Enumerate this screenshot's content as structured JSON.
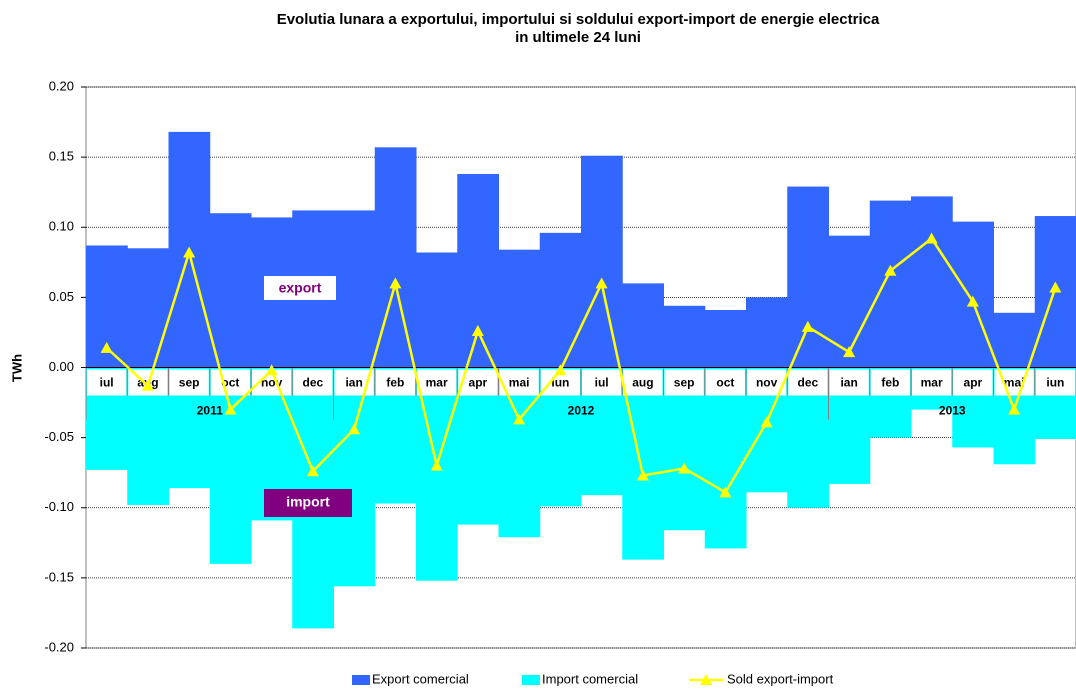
{
  "chart_data": {
    "type": "bar-line",
    "title": "Evolutia lunara a exportului, importului si soldului export-import de energie electrica",
    "subtitle": "in ultimele 24 luni",
    "y_label": "TWh",
    "categories": [
      "iul",
      "aug",
      "sep",
      "oct",
      "nov",
      "dec",
      "ian",
      "feb",
      "mar",
      "apr",
      "mai",
      "iun",
      "iul",
      "aug",
      "sep",
      "oct",
      "nov",
      "dec",
      "ian",
      "feb",
      "mar",
      "apr",
      "mai",
      "iun"
    ],
    "years": [
      "2011",
      "2012",
      "2013"
    ],
    "series": [
      {
        "name": "Export comercial",
        "color": "#3366ff",
        "kind": "bar",
        "values": [
          0.087,
          0.085,
          0.168,
          0.11,
          0.107,
          0.112,
          0.112,
          0.157,
          0.082,
          0.138,
          0.084,
          0.096,
          0.151,
          0.06,
          0.044,
          0.041,
          0.05,
          0.129,
          0.094,
          0.119,
          0.122,
          0.104,
          0.039,
          0.108
        ]
      },
      {
        "name": "Import comercial",
        "color": "#00ffff",
        "kind": "bar",
        "values": [
          -0.073,
          -0.098,
          -0.086,
          -0.14,
          -0.109,
          -0.186,
          -0.156,
          -0.097,
          -0.152,
          -0.112,
          -0.121,
          -0.099,
          -0.091,
          -0.137,
          -0.116,
          -0.129,
          -0.089,
          -0.1,
          -0.083,
          -0.05,
          -0.03,
          -0.057,
          -0.069,
          -0.051
        ]
      },
      {
        "name": "Sold export-import",
        "color": "#ffff00",
        "kind": "line",
        "values": [
          0.014,
          -0.013,
          0.082,
          -0.03,
          -0.002,
          -0.074,
          -0.044,
          0.06,
          -0.07,
          0.026,
          -0.037,
          -0.002,
          0.06,
          -0.077,
          -0.072,
          -0.089,
          -0.039,
          0.029,
          0.011,
          0.069,
          0.092,
          0.047,
          -0.03,
          0.057
        ]
      }
    ],
    "annotations": [
      "export",
      "import"
    ],
    "ylim": [
      -0.2,
      0.2
    ],
    "yticks": [
      {
        "value": -0.2,
        "label": "-0.20"
      },
      {
        "value": -0.15,
        "label": "-0.15"
      },
      {
        "value": -0.1,
        "label": "-0.10"
      },
      {
        "value": -0.05,
        "label": "-0.05"
      },
      {
        "value": 0,
        "label": "0.00"
      },
      {
        "value": 0.05,
        "label": "0.05"
      },
      {
        "value": 0.1,
        "label": "0.10"
      },
      {
        "value": 0.15,
        "label": "0.15"
      },
      {
        "value": 0.2,
        "label": "0.20"
      }
    ],
    "grid": true
  }
}
